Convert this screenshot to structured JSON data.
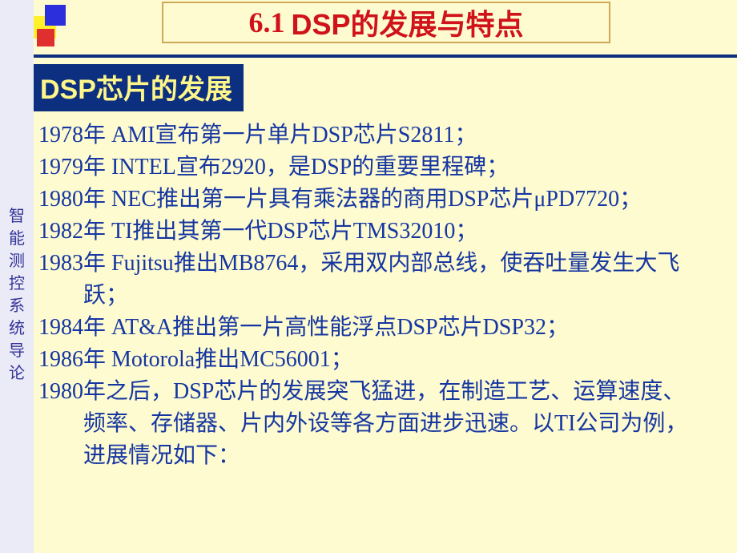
{
  "colors": {
    "slide_bg": "#fdfbcf",
    "sidebar_bg": "#ebebf7",
    "sidebar_text": "#333399",
    "title_text": "#d0121b",
    "title_bg": "#fdfbcf",
    "title_border": "#cfa85a",
    "rule": "#0d2f80",
    "subtitle_bg": "#0d2f80",
    "subtitle_text": "#fff68a",
    "body_text": "#1636a2",
    "deco_yellow": "#fff02a",
    "deco_blue": "#2b2fdc",
    "deco_red": "#e02f2f"
  },
  "sidebar": {
    "label": "智能测控系统导论"
  },
  "title": {
    "num": "6.1",
    "text": "DSP的发展与特点"
  },
  "subtitle": "DSP芯片的发展",
  "items": [
    "1978年   AMI宣布第一片单片DSP芯片S2811；",
    "1979年   INTEL宣布2920，是DSP的重要里程碑；",
    "1980年   NEC推出第一片具有乘法器的商用DSP芯片μPD7720；",
    "1982年   TI推出其第一代DSP芯片TMS32010；",
    "1983年   Fujitsu推出MB8764，采用双内部总线，使吞吐量发生大飞跃；",
    "1984年   AT&A推出第一片高性能浮点DSP芯片DSP32；",
    "1986年   Motorola推出MC56001；",
    "1980年之后，DSP芯片的发展突飞猛进，在制造工艺、运算速度、频率、存储器、片内外设等各方面进步迅速。以TI公司为例，进展情况如下："
  ]
}
